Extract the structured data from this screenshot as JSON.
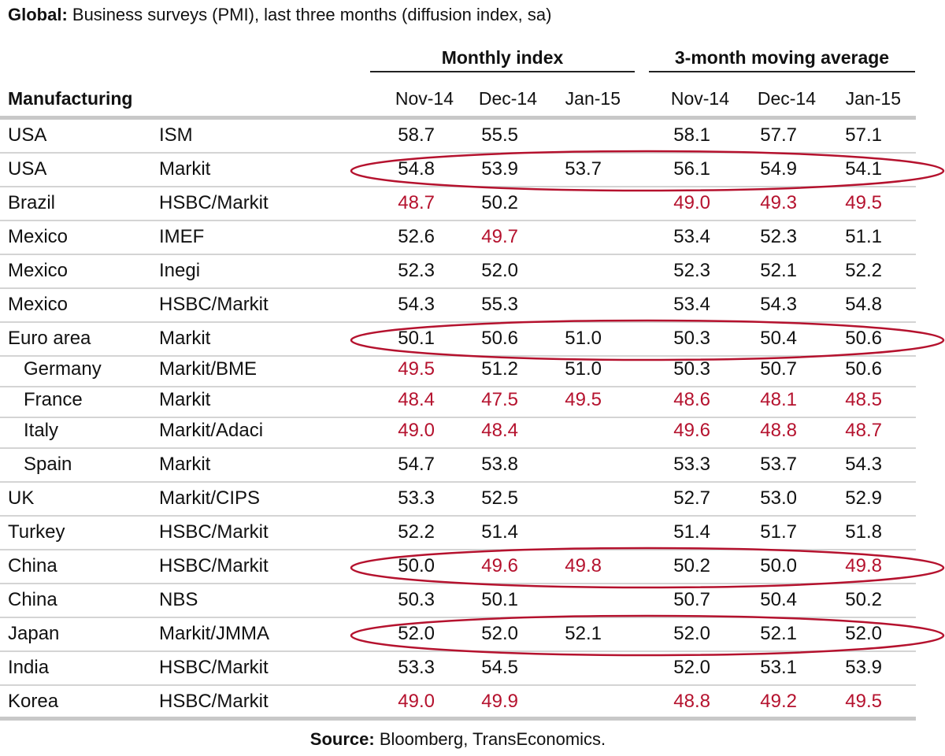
{
  "title": {
    "bold": "Global:",
    "rest": " Business surveys (PMI), last three months (diffusion index, sa)"
  },
  "groups": {
    "monthly": "Monthly index",
    "moving": "3-month moving average"
  },
  "section_label": "Manufacturing",
  "columns": [
    "Nov-14",
    "Dec-14",
    "Jan-15",
    "Nov-14",
    "Dec-14",
    "Jan-15"
  ],
  "colors": {
    "text": "#111111",
    "below50": "#b5122e",
    "circle": "#b5122e",
    "rule": "#c8c8c8"
  },
  "rows": [
    {
      "country": "USA",
      "indent": false,
      "source": "ISM",
      "values": [
        "58.7",
        "55.5",
        "",
        "58.1",
        "57.7",
        "57.1"
      ],
      "red": [
        false,
        false,
        false,
        false,
        false,
        false
      ],
      "circled": false
    },
    {
      "country": "USA",
      "indent": false,
      "source": "Markit",
      "values": [
        "54.8",
        "53.9",
        "53.7",
        "56.1",
        "54.9",
        "54.1"
      ],
      "red": [
        false,
        false,
        false,
        false,
        false,
        false
      ],
      "circled": true
    },
    {
      "country": "Brazil",
      "indent": false,
      "source": "HSBC/Markit",
      "values": [
        "48.7",
        "50.2",
        "",
        "49.0",
        "49.3",
        "49.5"
      ],
      "red": [
        true,
        false,
        false,
        true,
        true,
        true
      ],
      "circled": false
    },
    {
      "country": "Mexico",
      "indent": false,
      "source": "IMEF",
      "values": [
        "52.6",
        "49.7",
        "",
        "53.4",
        "52.3",
        "51.1"
      ],
      "red": [
        false,
        true,
        false,
        false,
        false,
        false
      ],
      "circled": false
    },
    {
      "country": "Mexico",
      "indent": false,
      "source": "Inegi",
      "values": [
        "52.3",
        "52.0",
        "",
        "52.3",
        "52.1",
        "52.2"
      ],
      "red": [
        false,
        false,
        false,
        false,
        false,
        false
      ],
      "circled": false
    },
    {
      "country": "Mexico",
      "indent": false,
      "source": "HSBC/Markit",
      "values": [
        "54.3",
        "55.3",
        "",
        "53.4",
        "54.3",
        "54.8"
      ],
      "red": [
        false,
        false,
        false,
        false,
        false,
        false
      ],
      "circled": false
    },
    {
      "country": "Euro area",
      "indent": false,
      "source": "Markit",
      "values": [
        "50.1",
        "50.6",
        "51.0",
        "50.3",
        "50.4",
        "50.6"
      ],
      "red": [
        false,
        false,
        false,
        false,
        false,
        false
      ],
      "circled": true
    },
    {
      "country": "Germany",
      "indent": true,
      "source": "Markit/BME",
      "values": [
        "49.5",
        "51.2",
        "51.0",
        "50.3",
        "50.7",
        "50.6"
      ],
      "red": [
        true,
        false,
        false,
        false,
        false,
        false
      ],
      "circled": false
    },
    {
      "country": "France",
      "indent": true,
      "source": "Markit",
      "values": [
        "48.4",
        "47.5",
        "49.5",
        "48.6",
        "48.1",
        "48.5"
      ],
      "red": [
        true,
        true,
        true,
        true,
        true,
        true
      ],
      "circled": false
    },
    {
      "country": "Italy",
      "indent": true,
      "source": "Markit/Adaci",
      "values": [
        "49.0",
        "48.4",
        "",
        "49.6",
        "48.8",
        "48.7"
      ],
      "red": [
        true,
        true,
        false,
        true,
        true,
        true
      ],
      "circled": false
    },
    {
      "country": "Spain",
      "indent": true,
      "source": "Markit",
      "values": [
        "54.7",
        "53.8",
        "",
        "53.3",
        "53.7",
        "54.3"
      ],
      "red": [
        false,
        false,
        false,
        false,
        false,
        false
      ],
      "circled": false
    },
    {
      "country": "UK",
      "indent": false,
      "source": "Markit/CIPS",
      "values": [
        "53.3",
        "52.5",
        "",
        "52.7",
        "53.0",
        "52.9"
      ],
      "red": [
        false,
        false,
        false,
        false,
        false,
        false
      ],
      "circled": false
    },
    {
      "country": "Turkey",
      "indent": false,
      "source": "HSBC/Markit",
      "values": [
        "52.2",
        "51.4",
        "",
        "51.4",
        "51.7",
        "51.8"
      ],
      "red": [
        false,
        false,
        false,
        false,
        false,
        false
      ],
      "circled": false
    },
    {
      "country": "China",
      "indent": false,
      "source": "HSBC/Markit",
      "values": [
        "50.0",
        "49.6",
        "49.8",
        "50.2",
        "50.0",
        "49.8"
      ],
      "red": [
        false,
        true,
        true,
        false,
        false,
        true
      ],
      "circled": true
    },
    {
      "country": "China",
      "indent": false,
      "source": "NBS",
      "values": [
        "50.3",
        "50.1",
        "",
        "50.7",
        "50.4",
        "50.2"
      ],
      "red": [
        false,
        false,
        false,
        false,
        false,
        false
      ],
      "circled": false
    },
    {
      "country": "Japan",
      "indent": false,
      "source": "Markit/JMMA",
      "values": [
        "52.0",
        "52.0",
        "52.1",
        "52.0",
        "52.1",
        "52.0"
      ],
      "red": [
        false,
        false,
        false,
        false,
        false,
        false
      ],
      "circled": true
    },
    {
      "country": "India",
      "indent": false,
      "source": "HSBC/Markit",
      "values": [
        "53.3",
        "54.5",
        "",
        "52.0",
        "53.1",
        "53.9"
      ],
      "red": [
        false,
        false,
        false,
        false,
        false,
        false
      ],
      "circled": false
    },
    {
      "country": "Korea",
      "indent": false,
      "source": "HSBC/Markit",
      "values": [
        "49.0",
        "49.9",
        "",
        "48.8",
        "49.2",
        "49.5"
      ],
      "red": [
        true,
        true,
        false,
        true,
        true,
        true
      ],
      "circled": false
    }
  ],
  "footer": {
    "bold": "Source:",
    "rest": " Bloomberg, TransEconomics."
  }
}
